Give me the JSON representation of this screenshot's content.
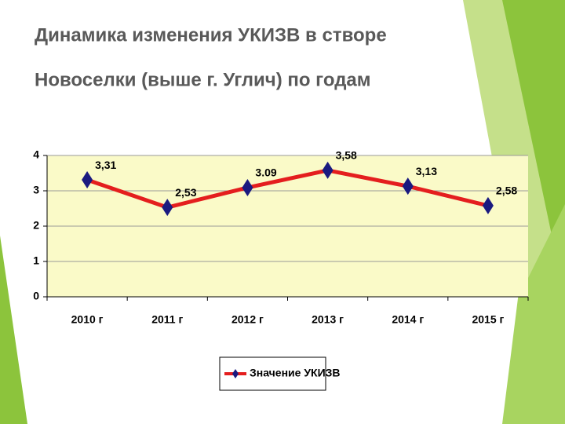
{
  "chart_data": {
    "type": "line",
    "title": [
      "Динамика изменения УКИЗВ в створе",
      "Новоселки (выше г. Углич) по годам"
    ],
    "categories": [
      "2010 г",
      "2011 г",
      "2012 г",
      "2013 г",
      "2014 г",
      "2015 г"
    ],
    "series": [
      {
        "name": "Значение УКИЗВ",
        "color": "#e41e1e",
        "marker_color": "#1a1a80",
        "values": [
          3.31,
          2.53,
          3.09,
          3.58,
          3.13,
          2.58
        ],
        "value_labels": [
          "3,31",
          "2,53",
          "3.09",
          "3,58",
          "3,13",
          "2,58"
        ]
      }
    ],
    "ylim": [
      0,
      4
    ],
    "yticks": [
      0,
      1,
      2,
      3,
      4
    ],
    "grid": true,
    "plot_background": "#fafac8"
  }
}
